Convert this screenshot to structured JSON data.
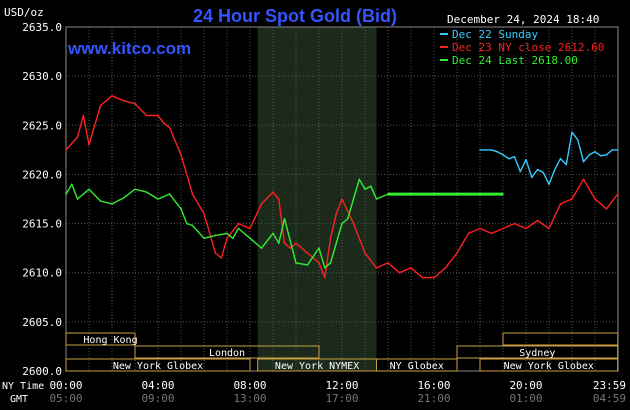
{
  "header": {
    "unit": "USD/oz",
    "title": "24 Hour Spot Gold (Bid)",
    "datetime": "December 24, 2024 18:40",
    "site": "www.kitco.com"
  },
  "legend": [
    {
      "label": "Dec 22 Sunday",
      "color": "#33ccff"
    },
    {
      "label": "Dec 23 NY close 2612.60",
      "color": "#ff2020"
    },
    {
      "label": "Dec 24 Last 2618.00",
      "color": "#33ee33"
    }
  ],
  "axes": {
    "ny_time_label": "NY Time",
    "gmt_label": "GMT",
    "x_ticks_ny": [
      "00:00",
      "04:00",
      "08:00",
      "12:00",
      "16:00",
      "20:00",
      "23:59"
    ],
    "x_ticks_gmt": [
      "05:00",
      "09:00",
      "13:00",
      "17:00",
      "21:00",
      "01:00",
      "04:59"
    ],
    "y_ticks": [
      "2635.0",
      "2630.0",
      "2625.0",
      "2620.0",
      "2615.0",
      "2610.0",
      "2605.0",
      "2600.0"
    ]
  },
  "sessions": [
    {
      "label": "Hong Kong",
      "start": "19:00",
      "end": "03:00"
    },
    {
      "label": "London",
      "start": "03:00",
      "end": "11:00"
    },
    {
      "label": "New York Globex",
      "start": "00:00",
      "end": "08:00"
    },
    {
      "label": "New York NYMEX",
      "start": "08:20",
      "end": "13:30"
    },
    {
      "label": "NY Globex",
      "start": "13:30",
      "end": "17:00"
    },
    {
      "label": "Sydney",
      "start": "17:00",
      "end": "23:59"
    },
    {
      "label": "New York Globex",
      "start": "18:00",
      "end": "23:59"
    }
  ],
  "chart_data": {
    "type": "line",
    "title": "24 Hour Spot Gold (Bid)",
    "ylabel": "USD/oz",
    "xlabel": "NY Time",
    "ylim": [
      2600.0,
      2635.0
    ],
    "x_unit": "hours (NY time)",
    "xlim": [
      0,
      24
    ],
    "highlight_band": [
      "08:20",
      "13:30"
    ],
    "grid": true,
    "series": [
      {
        "name": "Dec 22 Sunday",
        "color": "#33ccff",
        "x": [
          18.0,
          18.5,
          18.75,
          19.0,
          19.25,
          19.5,
          19.75,
          20.0,
          20.25,
          20.5,
          20.75,
          21.0,
          21.25,
          21.5,
          21.75,
          22.0,
          22.25,
          22.5,
          22.75,
          23.0,
          23.25,
          23.5,
          23.75,
          23.99
        ],
        "values": [
          2622.5,
          2622.5,
          2622.3,
          2622.0,
          2621.6,
          2621.8,
          2620.3,
          2621.5,
          2619.7,
          2620.5,
          2620.2,
          2619.0,
          2620.5,
          2621.6,
          2621.0,
          2624.3,
          2623.5,
          2621.3,
          2622.0,
          2622.3,
          2621.9,
          2622.0,
          2622.5,
          2622.5
        ]
      },
      {
        "name": "Dec 23 NY close 2612.60",
        "color": "#ff2020",
        "x": [
          0.0,
          0.5,
          0.75,
          1.0,
          1.5,
          2.0,
          2.5,
          3.0,
          3.5,
          4.0,
          4.25,
          4.5,
          5.0,
          5.5,
          6.0,
          6.5,
          6.75,
          7.0,
          7.5,
          8.0,
          8.5,
          9.0,
          9.25,
          9.5,
          9.75,
          10.0,
          10.5,
          11.0,
          11.25,
          11.5,
          11.75,
          12.0,
          12.5,
          13.0,
          13.5,
          14.0,
          14.5,
          15.0,
          15.5,
          16.0,
          16.5,
          17.0,
          17.5,
          18.0,
          18.5,
          19.0,
          19.5,
          20.0,
          20.5,
          21.0,
          21.5,
          22.0,
          22.5,
          23.0,
          23.5,
          23.99
        ],
        "values": [
          2622.5,
          2623.8,
          2626.0,
          2623.0,
          2627.0,
          2628.0,
          2627.5,
          2627.2,
          2626.0,
          2626.0,
          2625.2,
          2624.8,
          2622.0,
          2618.0,
          2616.0,
          2612.0,
          2611.5,
          2613.5,
          2615.0,
          2614.5,
          2617.0,
          2618.2,
          2617.5,
          2613.0,
          2612.5,
          2613.0,
          2612.0,
          2611.0,
          2609.5,
          2613.5,
          2616.0,
          2617.5,
          2615.0,
          2612.0,
          2610.5,
          2611.0,
          2610.0,
          2610.5,
          2609.5,
          2609.5,
          2610.5,
          2612.0,
          2614.0,
          2614.5,
          2614.0,
          2614.5,
          2615.0,
          2614.5,
          2615.3,
          2614.5,
          2617.0,
          2617.5,
          2619.5,
          2617.5,
          2616.5,
          2618.0
        ]
      },
      {
        "name": "Dec 24 Last 2618.00",
        "color": "#33ee33",
        "x": [
          0.0,
          0.25,
          0.5,
          0.75,
          1.0,
          1.5,
          2.0,
          2.5,
          3.0,
          3.5,
          4.0,
          4.5,
          5.0,
          5.25,
          5.5,
          6.0,
          6.5,
          7.0,
          7.25,
          7.5,
          8.0,
          8.5,
          9.0,
          9.25,
          9.5,
          10.0,
          10.5,
          11.0,
          11.25,
          11.5,
          12.0,
          12.25,
          12.5,
          12.75,
          13.0,
          13.25,
          13.5,
          14.0,
          14.5,
          15.0,
          16.0,
          17.0,
          18.0,
          19.0
        ],
        "values": [
          2618.0,
          2619.0,
          2617.5,
          2618.0,
          2618.5,
          2617.3,
          2617.0,
          2617.6,
          2618.5,
          2618.2,
          2617.5,
          2618.0,
          2616.5,
          2615.0,
          2614.8,
          2613.5,
          2613.8,
          2614.0,
          2613.5,
          2614.5,
          2613.5,
          2612.5,
          2614.0,
          2613.0,
          2615.5,
          2611.0,
          2610.8,
          2612.5,
          2610.5,
          2611.0,
          2615.0,
          2615.5,
          2617.5,
          2619.5,
          2618.5,
          2618.8,
          2617.5,
          2618.0,
          2618.0,
          2618.0,
          2618.0,
          2618.0,
          2618.0,
          2618.0
        ]
      }
    ]
  }
}
